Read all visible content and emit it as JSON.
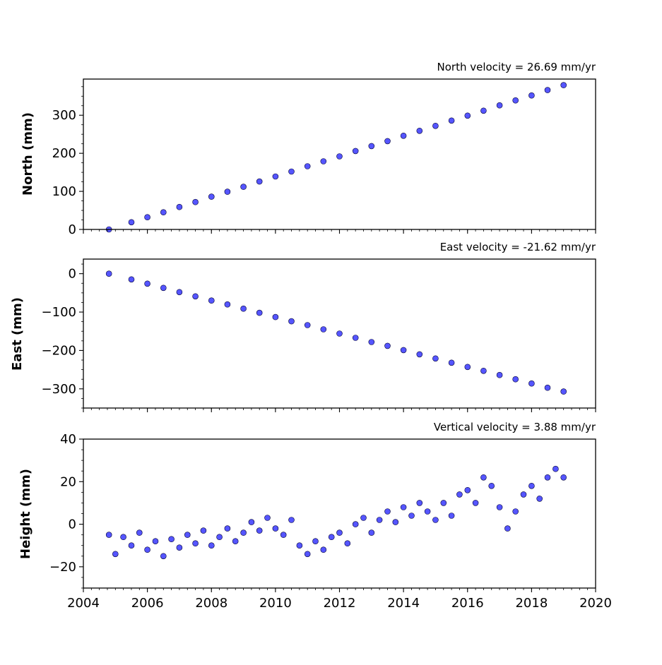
{
  "chart_data": [
    {
      "type": "scatter",
      "title": "North velocity = 26.69 mm/yr",
      "xlabel": "",
      "ylabel": "North (mm)",
      "xlim": [
        2004,
        2020
      ],
      "ylim": [
        0,
        395
      ],
      "yticks": [
        0,
        100,
        200,
        300
      ],
      "xticks": [
        2004,
        2006,
        2008,
        2010,
        2012,
        2014,
        2016,
        2018,
        2020
      ],
      "show_xtick_labels": false,
      "marker_color": "#5555ff",
      "edge_color": "#000033",
      "series": [
        {
          "x": [
            2004.8,
            2005.5,
            2006.0,
            2006.5,
            2007.0,
            2007.5,
            2008.0,
            2008.5,
            2009.0,
            2009.5,
            2010.0,
            2010.5,
            2011.0,
            2011.5,
            2012.0,
            2012.5,
            2013.0,
            2013.5,
            2014.0,
            2014.5,
            2015.0,
            2015.5,
            2016.0,
            2016.5,
            2017.0,
            2017.5,
            2018.0,
            2018.5,
            2019.0
          ],
          "y": [
            0,
            19,
            32,
            45,
            59,
            72,
            86,
            99,
            112,
            126,
            139,
            152,
            166,
            179,
            192,
            206,
            219,
            232,
            246,
            259,
            272,
            286,
            299,
            312,
            326,
            339,
            352,
            366,
            379
          ]
        }
      ]
    },
    {
      "type": "scatter",
      "title": "East velocity = -21.62 mm/yr",
      "xlabel": "",
      "ylabel": "East (mm)",
      "xlim": [
        2004,
        2020
      ],
      "ylim": [
        -350,
        38
      ],
      "yticks": [
        0,
        -100,
        -200,
        -300
      ],
      "xticks": [
        2004,
        2006,
        2008,
        2010,
        2012,
        2014,
        2016,
        2018,
        2020
      ],
      "show_xtick_labels": false,
      "marker_color": "#5555ff",
      "edge_color": "#000033",
      "series": [
        {
          "x": [
            2004.8,
            2005.5,
            2006.0,
            2006.5,
            2007.0,
            2007.5,
            2008.0,
            2008.5,
            2009.0,
            2009.5,
            2010.0,
            2010.5,
            2011.0,
            2011.5,
            2012.0,
            2012.5,
            2013.0,
            2013.5,
            2014.0,
            2014.5,
            2015.0,
            2015.5,
            2016.0,
            2016.5,
            2017.0,
            2017.5,
            2018.0,
            2018.5,
            2019.0
          ],
          "y": [
            0,
            -15,
            -26,
            -37,
            -48,
            -59,
            -70,
            -80,
            -91,
            -102,
            -113,
            -124,
            -134,
            -145,
            -156,
            -167,
            -178,
            -188,
            -199,
            -210,
            -221,
            -232,
            -243,
            -253,
            -264,
            -275,
            -286,
            -297,
            -307
          ]
        }
      ]
    },
    {
      "type": "scatter",
      "title": "Vertical velocity = 3.88 mm/yr",
      "xlabel": "",
      "ylabel": "Height (mm)",
      "xlim": [
        2004,
        2020
      ],
      "ylim": [
        -30,
        40
      ],
      "yticks": [
        -20,
        0,
        20,
        40
      ],
      "xticks": [
        2004,
        2006,
        2008,
        2010,
        2012,
        2014,
        2016,
        2018,
        2020
      ],
      "xtick_labels": [
        "2004",
        "2006",
        "2008",
        "2010",
        "2012",
        "2014",
        "2016",
        "2018",
        "2020"
      ],
      "show_xtick_labels": true,
      "marker_color": "#5555ff",
      "edge_color": "#000033",
      "series": [
        {
          "x": [
            2004.8,
            2005.0,
            2005.25,
            2005.5,
            2005.75,
            2006.0,
            2006.25,
            2006.5,
            2006.75,
            2007.0,
            2007.25,
            2007.5,
            2007.75,
            2008.0,
            2008.25,
            2008.5,
            2008.75,
            2009.0,
            2009.25,
            2009.5,
            2009.75,
            2010.0,
            2010.25,
            2010.5,
            2010.75,
            2011.0,
            2011.25,
            2011.5,
            2011.75,
            2012.0,
            2012.25,
            2012.5,
            2012.75,
            2013.0,
            2013.25,
            2013.5,
            2013.75,
            2014.0,
            2014.25,
            2014.5,
            2014.75,
            2015.0,
            2015.25,
            2015.5,
            2015.75,
            2016.0,
            2016.25,
            2016.5,
            2016.75,
            2017.0,
            2017.25,
            2017.5,
            2017.75,
            2018.0,
            2018.25,
            2018.5,
            2018.75,
            2019.0
          ],
          "y": [
            -5,
            -14,
            -6,
            -10,
            -4,
            -12,
            -8,
            -15,
            -7,
            -11,
            -5,
            -9,
            -3,
            -10,
            -6,
            -2,
            -8,
            -4,
            1,
            -3,
            3,
            -2,
            -5,
            2,
            -10,
            -14,
            -8,
            -12,
            -6,
            -4,
            -9,
            0,
            3,
            -4,
            2,
            6,
            1,
            8,
            4,
            10,
            6,
            2,
            10,
            4,
            14,
            16,
            10,
            22,
            18,
            8,
            -2,
            6,
            14,
            18,
            12,
            22,
            26,
            22
          ]
        }
      ]
    }
  ]
}
